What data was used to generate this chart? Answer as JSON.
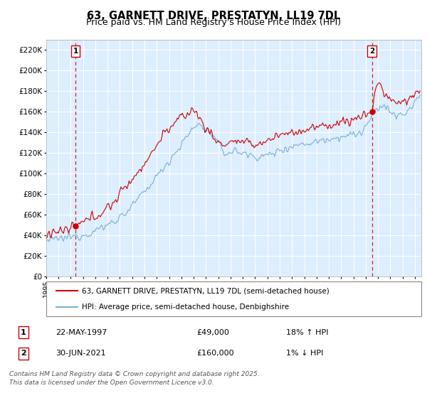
{
  "title": "63, GARNETT DRIVE, PRESTATYN, LL19 7DL",
  "subtitle": "Price paid vs. HM Land Registry's House Price Index (HPI)",
  "ylim": [
    0,
    230000
  ],
  "yticks": [
    0,
    20000,
    40000,
    60000,
    80000,
    100000,
    120000,
    140000,
    160000,
    180000,
    200000,
    220000
  ],
  "xlim_start": 1995.0,
  "xlim_end": 2025.5,
  "plot_bg_color": "#ddeeff",
  "grid_color": "#ffffff",
  "red_line_color": "#cc0000",
  "blue_line_color": "#7bafd4",
  "sale1_year": 1997.39,
  "sale1_price": 49000,
  "sale1_label": "1",
  "sale2_year": 2021.5,
  "sale2_price": 160000,
  "sale2_label": "2",
  "legend_line1": "63, GARNETT DRIVE, PRESTATYN, LL19 7DL (semi-detached house)",
  "legend_line2": "HPI: Average price, semi-detached house, Denbighshire",
  "table_row1": [
    "1",
    "22-MAY-1997",
    "£49,000",
    "18% ↑ HPI"
  ],
  "table_row2": [
    "2",
    "30-JUN-2021",
    "£160,000",
    "1% ↓ HPI"
  ],
  "footnote": "Contains HM Land Registry data © Crown copyright and database right 2025.\nThis data is licensed under the Open Government Licence v3.0.",
  "title_fontsize": 10.5,
  "subtitle_fontsize": 9,
  "axis_fontsize": 7.5,
  "legend_fontsize": 7.5,
  "table_fontsize": 8,
  "footnote_fontsize": 6.5
}
